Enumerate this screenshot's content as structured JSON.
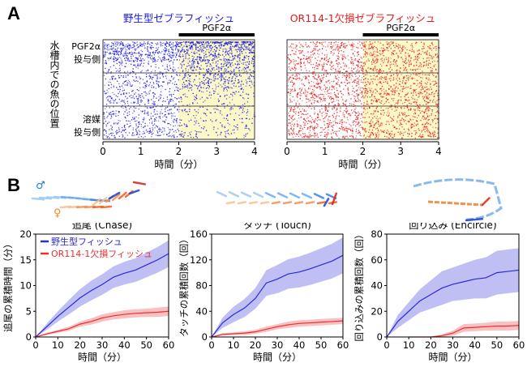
{
  "panel_a": {
    "letter": "A",
    "ylabel": "水槽内での魚の位置",
    "y_top_label": [
      "PGF2α",
      "投与側"
    ],
    "y_bottom_label": [
      "溶媒",
      "投与側"
    ],
    "xlabel": "時間（分）",
    "xticks": [
      "0",
      "1",
      "2",
      "3",
      "4"
    ],
    "stim_label": "PGF2α",
    "stim_range_min": [
      2,
      4
    ],
    "rasters": [
      {
        "title": "野生型ゼブラフィッシュ",
        "color": "#1a1ae6",
        "bias_after_stim": "top"
      },
      {
        "title": "OR114-1欠損ゼブラフィッシュ",
        "color": "#e61a1a",
        "bias_after_stim": "none"
      }
    ],
    "stim_shade_color": "#fdf8c8"
  },
  "panel_b": {
    "letter": "B",
    "male_symbol": "♂",
    "female_symbol": "♀",
    "male_color": "#1a7ae0",
    "female_color": "#f08a1a"
  },
  "chart_data": [
    {
      "type": "line",
      "title": "追尾 (Chase)",
      "xlabel": "時間（分）",
      "ylabel": "追尾の累積時間（分）",
      "xlim": [
        0,
        60
      ],
      "ylim": [
        0,
        20
      ],
      "xticks": [
        0,
        10,
        20,
        30,
        40,
        50,
        60
      ],
      "yticks": [
        0,
        5,
        10,
        15,
        20
      ],
      "legend": "top-left",
      "x": [
        0,
        5,
        10,
        15,
        20,
        25,
        30,
        35,
        40,
        45,
        50,
        55,
        60
      ],
      "series": [
        {
          "name": "野生型フィッシュ",
          "color": "#2a2ad8",
          "values": [
            0,
            2,
            4,
            5.8,
            7.6,
            9,
            10.2,
            11.6,
            12.4,
            13,
            14,
            15,
            16.2
          ],
          "sem": [
            0,
            0.6,
            1,
            1.4,
            1.7,
            1.9,
            2,
            2.1,
            2.2,
            2.3,
            2.4,
            2.5,
            2.6
          ]
        },
        {
          "name": "OR114-1欠損フィッシュ",
          "color": "#e83030",
          "values": [
            0,
            0.6,
            1.1,
            1.6,
            2.5,
            3,
            3.7,
            4.1,
            4.4,
            4.6,
            4.7,
            4.8,
            5
          ],
          "sem": [
            0,
            0.2,
            0.3,
            0.4,
            0.5,
            0.6,
            0.7,
            0.7,
            0.8,
            0.8,
            0.8,
            0.9,
            0.9
          ]
        }
      ]
    },
    {
      "type": "line",
      "title": "タッチ (Touch)",
      "xlabel": "時間（分）",
      "ylabel": "タッチの累積回数（回）",
      "xlim": [
        0,
        60
      ],
      "ylim": [
        0,
        160
      ],
      "xticks": [
        0,
        10,
        20,
        30,
        40,
        50,
        60
      ],
      "yticks": [
        0,
        40,
        80,
        120,
        160
      ],
      "x": [
        0,
        5,
        10,
        15,
        20,
        25,
        30,
        35,
        40,
        45,
        50,
        55,
        60
      ],
      "series": [
        {
          "color": "#2a2ad8",
          "values": [
            0,
            22,
            35,
            45,
            60,
            84,
            90,
            98,
            101,
            106,
            112,
            118,
            127
          ],
          "sem": [
            0,
            8,
            12,
            14,
            16,
            20,
            22,
            23,
            24,
            25,
            26,
            27,
            28
          ]
        },
        {
          "color": "#e83030",
          "values": [
            0,
            4,
            5,
            6,
            8,
            12,
            16,
            19,
            21,
            22,
            23,
            24,
            25
          ],
          "sem": [
            0,
            2,
            2,
            3,
            3,
            4,
            4,
            5,
            5,
            5,
            5,
            5,
            5
          ]
        }
      ]
    },
    {
      "type": "line",
      "title": "回り込み (Encircle)",
      "xlabel": "時間（分）",
      "ylabel": "回り込みの累積回数（回）",
      "xlim": [
        0,
        60
      ],
      "ylim": [
        0,
        80
      ],
      "xticks": [
        0,
        10,
        20,
        30,
        40,
        50,
        60
      ],
      "yticks": [
        0,
        20,
        40,
        60,
        80
      ],
      "x": [
        0,
        5,
        10,
        15,
        20,
        25,
        30,
        35,
        40,
        45,
        50,
        55,
        60
      ],
      "series": [
        {
          "color": "#2a2ad8",
          "values": [
            0,
            12,
            20,
            28,
            33,
            38,
            41,
            43,
            45,
            46,
            50,
            51,
            52
          ],
          "sem": [
            0,
            5,
            7,
            9,
            11,
            13,
            13,
            14,
            15,
            16,
            17,
            17,
            17
          ]
        },
        {
          "color": "#e83030",
          "values": [
            null,
            null,
            0,
            0,
            0,
            1,
            3,
            7,
            7.5,
            8,
            8.5,
            8.5,
            9
          ],
          "sem": [
            null,
            null,
            0,
            0,
            0,
            1,
            2,
            3,
            3,
            3,
            3.5,
            3.5,
            3.5
          ]
        }
      ]
    }
  ]
}
